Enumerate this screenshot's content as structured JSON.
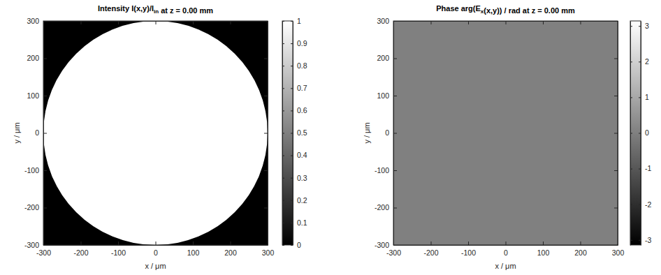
{
  "chart_data": [
    {
      "type": "heatmap",
      "title": [
        "Intensity I(x,y)/I",
        {
          "sub": "in"
        },
        " at z = 0.00 mm"
      ],
      "xlabel": "x / μm",
      "ylabel": "y / μm",
      "xlim": [
        -300,
        300
      ],
      "ylim": [
        -300,
        300
      ],
      "xticks": [
        -300,
        -200,
        -100,
        0,
        100,
        200,
        300
      ],
      "yticks": [
        -300,
        -200,
        -100,
        0,
        100,
        200,
        300
      ],
      "color": "gray",
      "background_value": 0,
      "regions": [
        {
          "shape": "circle",
          "center": [
            0,
            0
          ],
          "radius": 300,
          "value": 1
        }
      ],
      "colorbar": {
        "range": [
          0,
          1
        ],
        "ticks": [
          0,
          0.1,
          0.2,
          0.3,
          0.4,
          0.5,
          0.6,
          0.7,
          0.8,
          0.9,
          1
        ]
      }
    },
    {
      "type": "heatmap",
      "title": [
        "Phase arg(E",
        {
          "sub": "x"
        },
        "(x,y)) / rad at z = 0.00 mm"
      ],
      "xlabel": "x / μm",
      "ylabel": "y / μm",
      "xlim": [
        -300,
        300
      ],
      "ylim": [
        -300,
        300
      ],
      "xticks": [
        -300,
        -200,
        -100,
        0,
        100,
        200,
        300
      ],
      "yticks": [
        -300,
        -200,
        -100,
        0,
        100,
        200,
        300
      ],
      "color": "gray",
      "background_value": 0,
      "regions": [],
      "colorbar": {
        "range": [
          -3.14159,
          3.14159
        ],
        "ticks": [
          -3,
          -2,
          -1,
          0,
          1,
          2,
          3
        ]
      }
    }
  ]
}
